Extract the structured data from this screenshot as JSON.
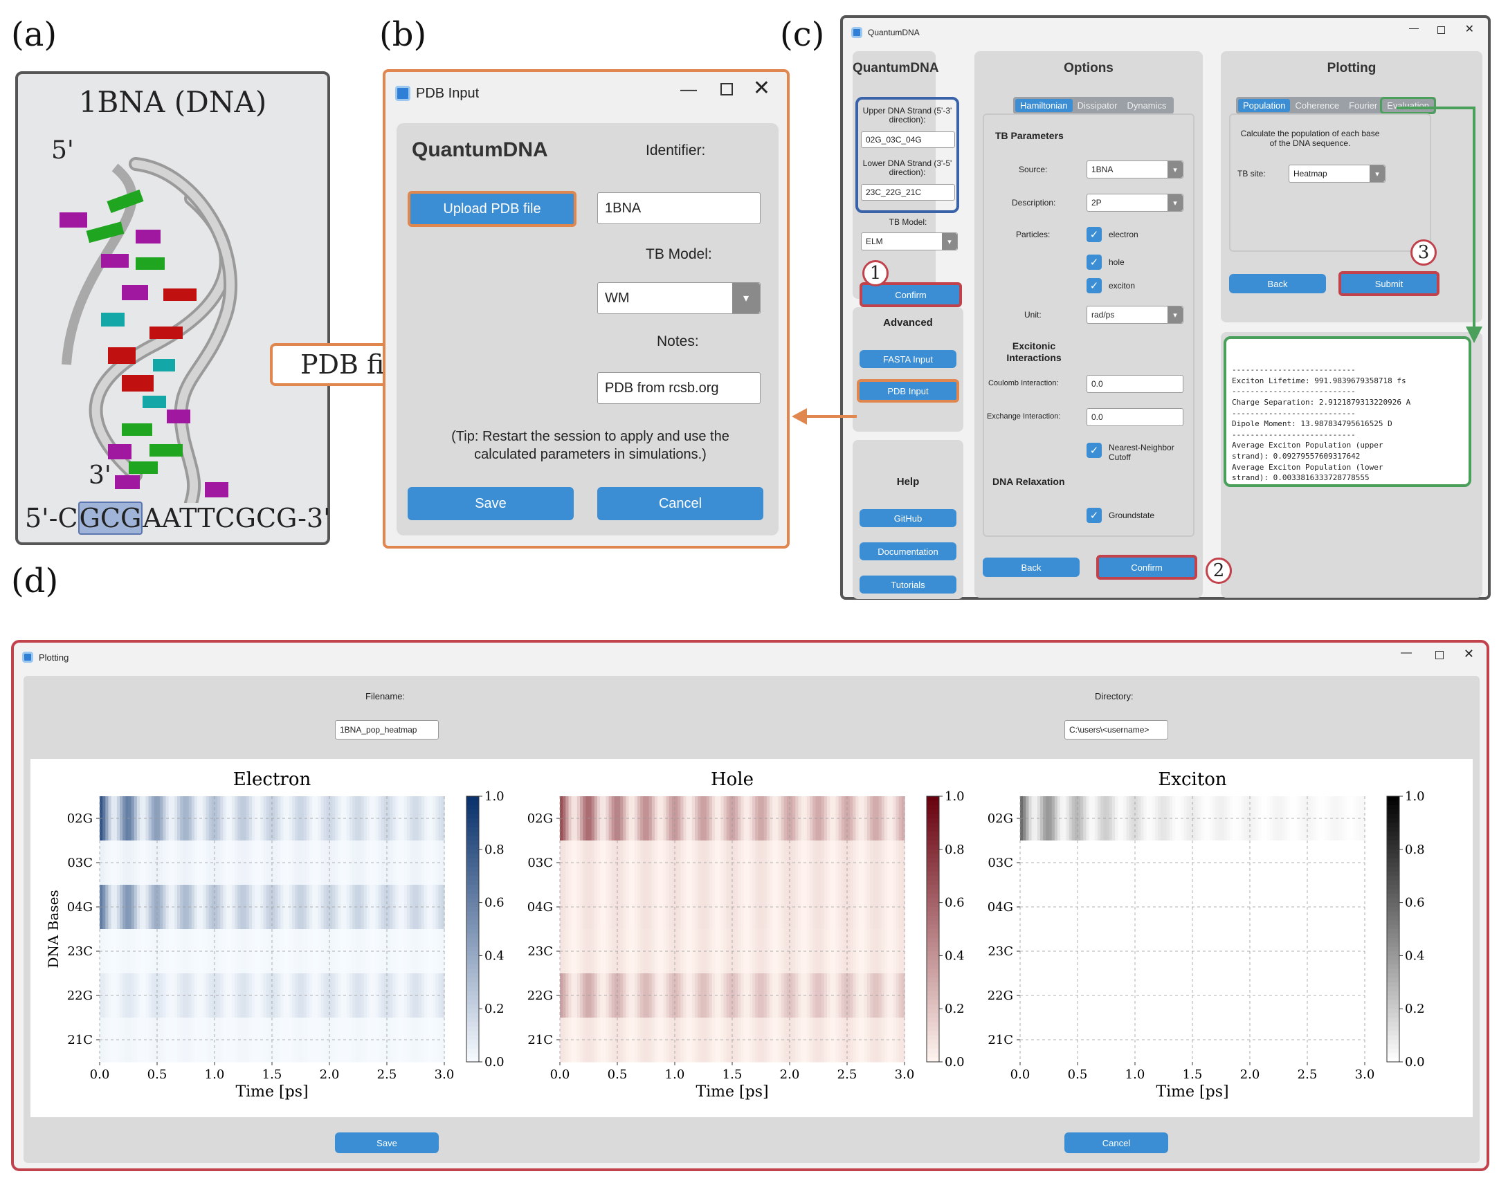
{
  "panels": {
    "a": "(a)",
    "b": "(b)",
    "c": "(c)",
    "d": "(d)"
  },
  "dna": {
    "title": "1BNA (DNA)",
    "five": "5'",
    "three": "3'",
    "seq_pre": "5'-C",
    "seq_hl": "GCG",
    "seq_post": "AATTCGCG-3'"
  },
  "pdb_file_label": "PDB file",
  "pdb_input": {
    "title": "PDB Input",
    "app_name": "QuantumDNA",
    "identifier_label": "Identifier:",
    "identifier_value": "1BNA",
    "upload_label": "Upload PDB file",
    "tb_model_label": "TB Model:",
    "tb_model_value": "WM",
    "notes_label": "Notes:",
    "notes_value": "PDB from rcsb.org",
    "tip": "(Tip: Restart the session to apply and use the calculated parameters in simulations.)",
    "save": "Save",
    "cancel": "Cancel"
  },
  "qdna": {
    "title": "QuantumDNA",
    "app_name": "QuantumDNA",
    "upper_label": "Upper DNA Strand (5'-3' direction):",
    "upper_value": "02G_03C_04G",
    "lower_label": "Lower DNA Strand (3'-5' direction):",
    "lower_value": "23C_22G_21C",
    "tb_model_label": "TB Model:",
    "tb_model_value": "ELM",
    "confirm": "Confirm",
    "advanced": "Advanced",
    "fasta": "FASTA Input",
    "pdb": "PDB Input",
    "help": "Help",
    "github": "GitHub",
    "docs": "Documentation",
    "tutorials": "Tutorials",
    "options": {
      "title": "Options",
      "tabs": [
        "Hamiltonian",
        "Dissipator",
        "Dynamics"
      ],
      "tb_params": "TB Parameters",
      "source_label": "Source:",
      "source_value": "1BNA",
      "desc_label": "Description:",
      "desc_value": "2P",
      "particles_label": "Particles:",
      "electron": "electron",
      "hole": "hole",
      "exciton": "exciton",
      "unit_label": "Unit:",
      "unit_value": "rad/ps",
      "excitonic": "Excitonic Interactions",
      "coulomb_label": "Coulomb Interaction:",
      "coulomb_value": "0.0",
      "exchange_label": "Exchange Interaction:",
      "exchange_value": "0.0",
      "nn_label": "Nearest-Neighbor Cutoff",
      "relax": "DNA Relaxation",
      "ground": "Groundstate",
      "back": "Back",
      "confirm": "Confirm"
    },
    "plotting": {
      "title": "Plotting",
      "tabs": [
        "Population",
        "Coherence",
        "Fourier",
        "Evaluation"
      ],
      "desc": "Calculate the population of each base of the DNA sequence.",
      "tb_site_label": "TB site:",
      "tb_site_value": "Heatmap",
      "back": "Back",
      "submit": "Submit"
    },
    "output": [
      "---------------------------",
      "Exciton Lifetime: 991.9839679358718 fs",
      "---------------------------",
      "Charge Separation: 2.9121879313220926 A",
      "---------------------------",
      "Dipole Moment: 13.987834795616525 D",
      "---------------------------",
      "Average Exciton Population (upper",
      "strand): 0.09279557609317642",
      "Average Exciton Population (lower",
      "strand): 0.0033816333728778555"
    ]
  },
  "steps": [
    "1",
    "2",
    "3"
  ],
  "plot_window": {
    "title": "Plotting",
    "filename_label": "Filename:",
    "filename_value": "1BNA_pop_heatmap",
    "directory_label": "Directory:",
    "directory_value": "C:\\users\\<username>",
    "save": "Save",
    "cancel": "Cancel"
  },
  "chart_data": [
    {
      "type": "heatmap",
      "title": "Electron",
      "xlabel": "Time [ps]",
      "ylabel": "DNA Bases",
      "categories": [
        "02G",
        "03C",
        "04G",
        "23C",
        "22G",
        "21C"
      ],
      "xlim": [
        0,
        3.0
      ],
      "xticks": [
        "0.0",
        "0.5",
        "1.0",
        "1.5",
        "2.0",
        "2.5",
        "3.0"
      ],
      "colorbar_ticks": [
        "0.0",
        "0.2",
        "0.4",
        "0.6",
        "0.8",
        "1.0"
      ],
      "colormap": "Blues",
      "base": [
        0.85,
        0.05,
        0.65,
        0.02,
        0.08,
        0.03
      ],
      "tail": [
        0.15,
        0.04,
        0.18,
        0.02,
        0.12,
        0.02
      ]
    },
    {
      "type": "heatmap",
      "title": "Hole",
      "xlabel": "Time [ps]",
      "ylabel": "",
      "categories": [
        "02G",
        "03C",
        "04G",
        "23C",
        "22G",
        "21C"
      ],
      "xlim": [
        0,
        3.0
      ],
      "xticks": [
        "0.0",
        "0.5",
        "1.0",
        "1.5",
        "2.0",
        "2.5",
        "3.0"
      ],
      "colorbar_ticks": [
        "0.0",
        "0.2",
        "0.4",
        "0.6",
        "0.8",
        "1.0"
      ],
      "colormap": "Reds",
      "base": [
        0.7,
        0.08,
        0.08,
        0.07,
        0.35,
        0.07
      ],
      "tail": [
        0.3,
        0.08,
        0.08,
        0.07,
        0.2,
        0.07
      ]
    },
    {
      "type": "heatmap",
      "title": "Exciton",
      "xlabel": "Time [ps]",
      "ylabel": "",
      "categories": [
        "02G",
        "03C",
        "04G",
        "23C",
        "22G",
        "21C"
      ],
      "xlim": [
        0,
        3.0
      ],
      "xticks": [
        "0.0",
        "0.5",
        "1.0",
        "1.5",
        "2.0",
        "2.5",
        "3.0"
      ],
      "colorbar_ticks": [
        "0.0",
        "0.2",
        "0.4",
        "0.6",
        "0.8",
        "1.0"
      ],
      "colormap": "Greys",
      "base": [
        0.6,
        0,
        0,
        0,
        0,
        0
      ],
      "tail": [
        0.03,
        0,
        0,
        0,
        0,
        0
      ]
    }
  ]
}
